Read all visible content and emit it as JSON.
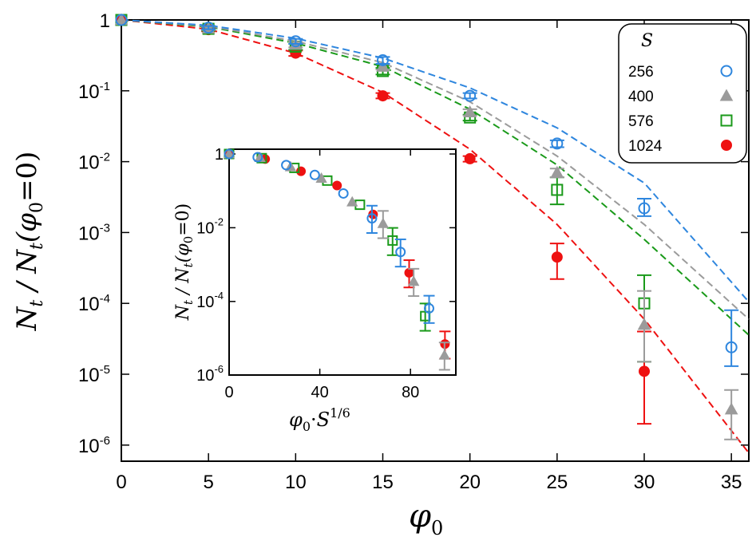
{
  "chart_data": [
    {
      "type": "scatter",
      "yscale": "log",
      "xlabel": "φ0",
      "ylabel": "Nt / Nt(φ0 = 0)",
      "xlim": [
        0,
        36
      ],
      "ylim": [
        1e-06,
        1
      ],
      "xticks": [
        "0",
        "5",
        "10",
        "15",
        "20",
        "25",
        "30",
        "35"
      ],
      "yticks": [
        "1",
        "10-1",
        "10-2",
        "10-3",
        "10-4",
        "10-5",
        "10-6"
      ],
      "legend": {
        "title": "S",
        "position": "top-right"
      },
      "series": [
        {
          "name": "256",
          "color": "#2e86de",
          "marker": "open-circle",
          "points": [
            [
              0,
              1,
              null,
              null
            ],
            [
              5,
              0.78,
              0.74,
              0.82
            ],
            [
              10,
              0.5,
              0.46,
              0.54
            ],
            [
              15,
              0.27,
              0.24,
              0.3
            ],
            [
              20,
              0.085,
              0.078,
              0.093
            ],
            [
              25,
              0.018,
              0.016,
              0.02
            ],
            [
              30,
              0.0022,
              0.0017,
              0.003
            ],
            [
              35,
              2.4e-05,
              1.3e-05,
              8e-05
            ]
          ],
          "fit": [
            [
              0,
              1
            ],
            [
              5,
              0.84
            ],
            [
              10,
              0.55
            ],
            [
              15,
              0.29
            ],
            [
              20,
              0.11
            ],
            [
              25,
              0.03
            ],
            [
              30,
              0.005
            ],
            [
              35,
              0.0002
            ]
          ]
        },
        {
          "name": "400",
          "color": "#9b9b9b",
          "marker": "filled-triangle",
          "points": [
            [
              0,
              1,
              null,
              null
            ],
            [
              5,
              0.76,
              0.72,
              0.8
            ],
            [
              10,
              0.45,
              0.41,
              0.49
            ],
            [
              15,
              0.22,
              0.2,
              0.24
            ],
            [
              20,
              0.05,
              0.045,
              0.055
            ],
            [
              25,
              0.007,
              0.006,
              0.008
            ],
            [
              30,
              5e-05,
              1.5e-05,
              0.00015
            ],
            [
              35,
              3.2e-06,
              1.2e-06,
              6e-06
            ]
          ],
          "fit": [
            [
              0,
              1
            ],
            [
              5,
              0.82
            ],
            [
              10,
              0.5
            ],
            [
              15,
              0.25
            ],
            [
              20,
              0.07
            ],
            [
              25,
              0.012
            ],
            [
              30,
              0.0013
            ],
            [
              35,
              0.0001
            ]
          ]
        },
        {
          "name": "576",
          "color": "#1a9a1a",
          "marker": "open-square",
          "points": [
            [
              0,
              1,
              null,
              null
            ],
            [
              5,
              0.75,
              0.71,
              0.79
            ],
            [
              10,
              0.42,
              0.38,
              0.46
            ],
            [
              15,
              0.19,
              0.17,
              0.21
            ],
            [
              20,
              0.042,
              0.038,
              0.046
            ],
            [
              25,
              0.004,
              0.0025,
              0.006
            ],
            [
              30,
              0.0001,
              1.5e-05,
              0.00025
            ]
          ],
          "fit": [
            [
              0,
              1
            ],
            [
              5,
              0.8
            ],
            [
              10,
              0.47
            ],
            [
              15,
              0.22
            ],
            [
              20,
              0.055
            ],
            [
              25,
              0.009
            ],
            [
              30,
              0.0008
            ],
            [
              35,
              6e-05
            ]
          ]
        },
        {
          "name": "1024",
          "color": "#ee1111",
          "marker": "filled-circle",
          "points": [
            [
              0,
              1,
              null,
              null
            ],
            [
              5,
              0.73,
              0.69,
              0.77
            ],
            [
              10,
              0.34,
              0.31,
              0.37
            ],
            [
              15,
              0.085,
              0.078,
              0.093
            ],
            [
              20,
              0.011,
              0.01,
              0.012
            ],
            [
              25,
              0.00045,
              0.00022,
              0.0007
            ],
            [
              30,
              1.1e-05,
              2e-06,
              4e-05
            ]
          ],
          "fit": [
            [
              0,
              1
            ],
            [
              5,
              0.74
            ],
            [
              10,
              0.34
            ],
            [
              15,
              0.095
            ],
            [
              20,
              0.015
            ],
            [
              25,
              0.0013
            ],
            [
              30,
              6e-05
            ],
            [
              35,
              1.6e-06
            ]
          ]
        }
      ]
    },
    {
      "type": "scatter",
      "yscale": "log",
      "xlabel": "φ0·S^1/6",
      "ylabel": "Nt / Nt(φ0 = 0)",
      "xlim": [
        0,
        100
      ],
      "ylim": [
        1e-06,
        1
      ],
      "xticks": [
        "0",
        "40",
        "80"
      ],
      "yticks": [
        "1",
        "10-2",
        "10-4",
        "10-6"
      ],
      "series": [
        {
          "name": "256",
          "points": [
            [
              0,
              1
            ],
            [
              12.6,
              0.82
            ],
            [
              25.2,
              0.5
            ],
            [
              37.8,
              0.27
            ],
            [
              50.4,
              0.085
            ],
            [
              63,
              0.018
            ],
            [
              75.6,
              0.0022
            ],
            [
              88.2,
              6.5e-05
            ]
          ]
        },
        {
          "name": "400",
          "points": [
            [
              0,
              1
            ],
            [
              13.6,
              0.8
            ],
            [
              27.1,
              0.45
            ],
            [
              40.7,
              0.22
            ],
            [
              54.3,
              0.05
            ],
            [
              67.9,
              0.013
            ],
            [
              81.4,
              0.00035
            ],
            [
              95,
              3.5e-06
            ]
          ]
        },
        {
          "name": "576",
          "points": [
            [
              0,
              1
            ],
            [
              14.4,
              0.77
            ],
            [
              28.8,
              0.42
            ],
            [
              43.3,
              0.19
            ],
            [
              57.7,
              0.042
            ],
            [
              72.1,
              0.0045
            ],
            [
              86.5,
              4e-05
            ]
          ]
        },
        {
          "name": "1024",
          "points": [
            [
              0,
              1
            ],
            [
              15.9,
              0.73
            ],
            [
              31.7,
              0.34
            ],
            [
              47.6,
              0.14
            ],
            [
              63.5,
              0.023
            ],
            [
              79.4,
              0.0006
            ],
            [
              95.2,
              7e-06
            ]
          ]
        }
      ]
    }
  ],
  "labels": {
    "ylabel_main": "Nt / Nt(φ0 = 0)",
    "xlabel_main": "φ0",
    "ylabel_inset": "Nt / Nt(φ0 = 0)",
    "xlabel_inset": "φ0·S^1/6",
    "legend_title": "S"
  }
}
